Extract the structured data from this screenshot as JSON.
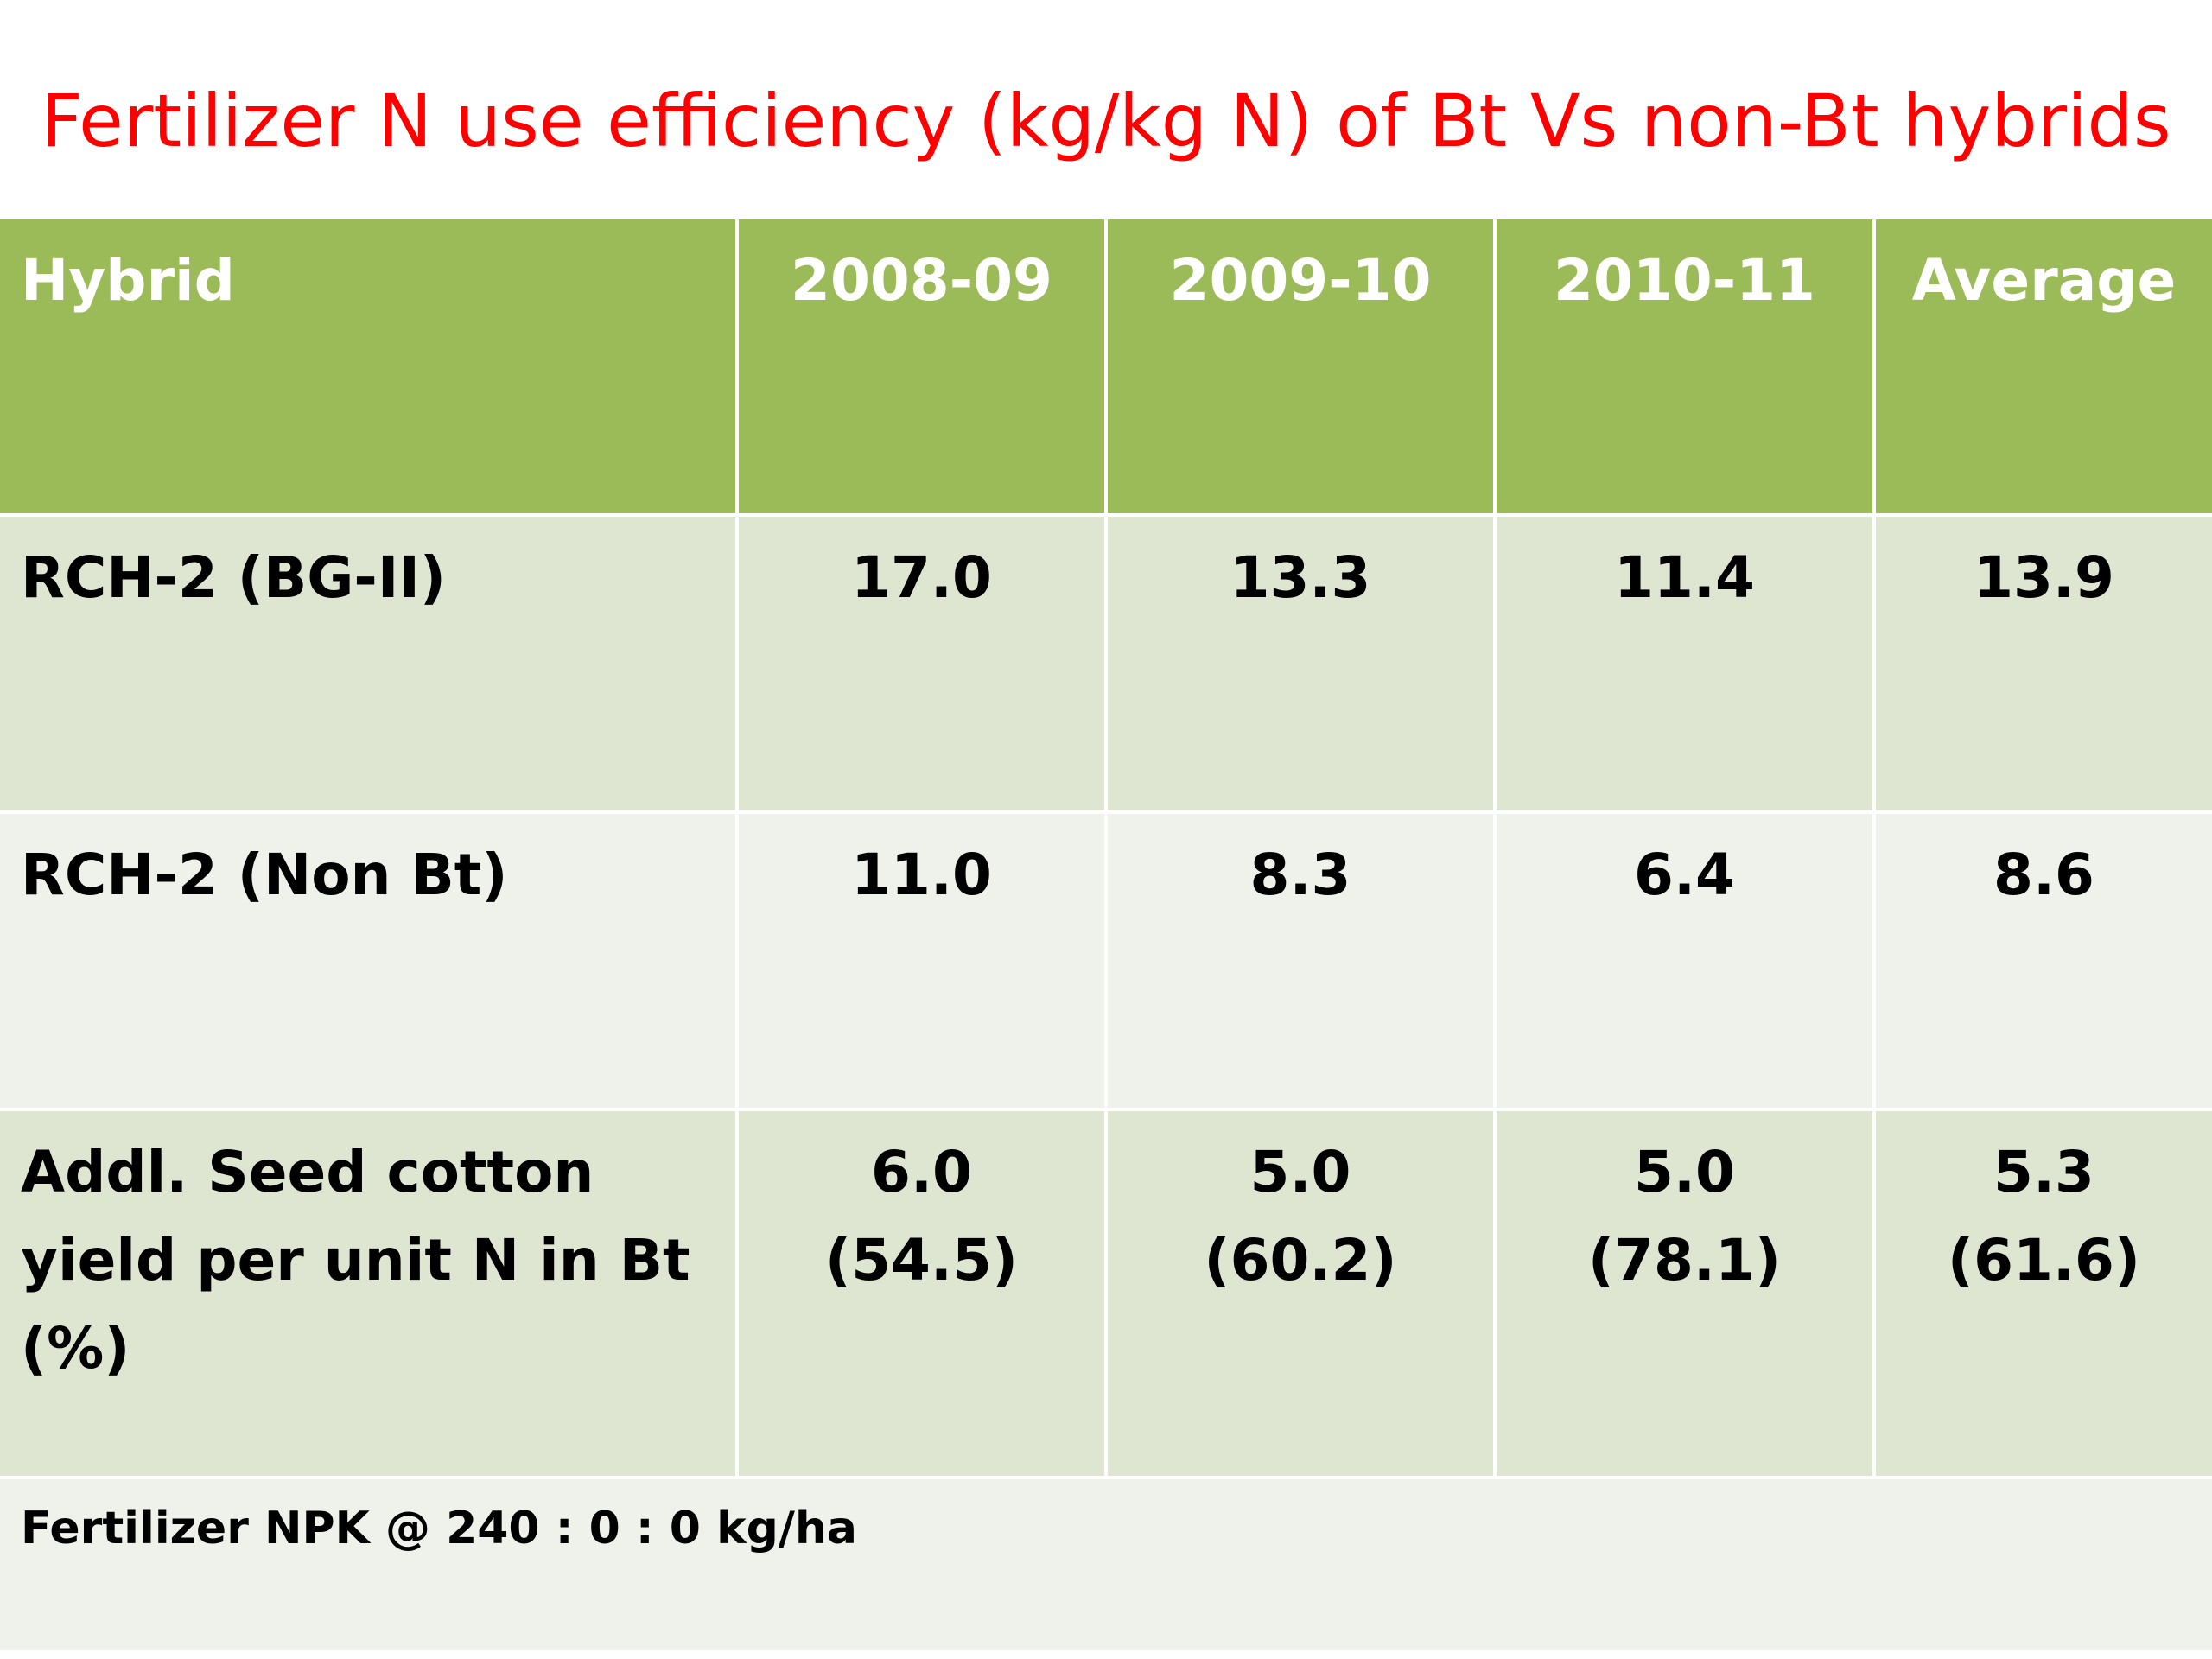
{
  "title": "Fertilizer N use efficiency  (kg/kg N) of Bt Vs non-Bt hybrids",
  "table": {
    "columns": [
      "Hybrid",
      "2008-09",
      "2009-10",
      "2010-11",
      "Average"
    ],
    "rows": [
      {
        "label": "RCH-2 (BG-II)",
        "values": [
          "17.0",
          "13.3",
          "11.4",
          "13.9"
        ]
      },
      {
        "label": "RCH-2 (Non Bt)",
        "values": [
          "11.0",
          "8.3",
          "6.4",
          "8.6"
        ]
      },
      {
        "label_lines": [
          "Addl. Seed cotton",
          "yield per unit N in Bt",
          "(%)"
        ],
        "values": [
          {
            "value": "6.0",
            "percent": "(54.5)"
          },
          {
            "value": "5.0",
            "percent": "(60.2)"
          },
          {
            "value": "5.0",
            "percent": "(78.1)"
          },
          {
            "value": "5.3",
            "percent": "(61.6)"
          }
        ]
      }
    ],
    "footnote": "Fertilizer NPK @ 240 : 0 : 0  kg/ha"
  },
  "colors": {
    "title": "#ff0000",
    "header_bg": "#9bbb59",
    "header_text": "#ffffff",
    "row_dark_bg": "#dee6d1",
    "row_light_bg": "#eef2ea",
    "body_text": "#000000"
  }
}
